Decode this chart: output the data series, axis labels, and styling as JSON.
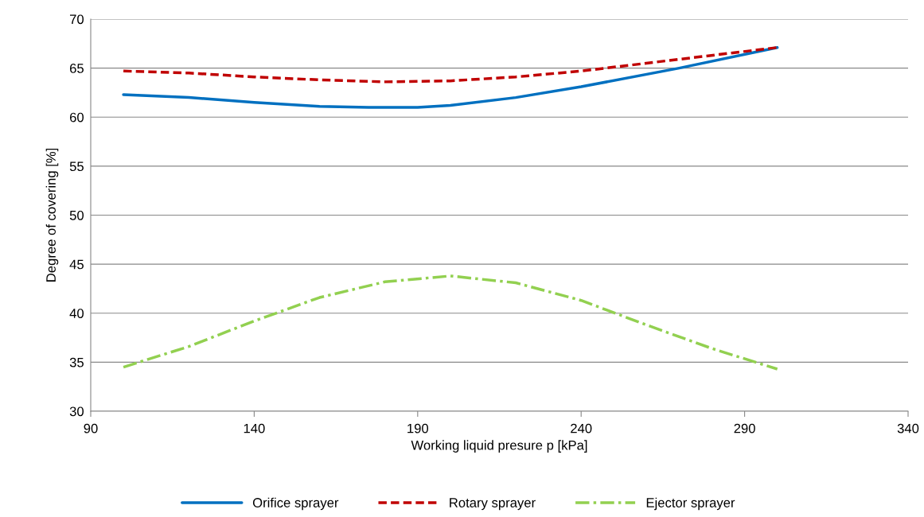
{
  "chart_data": {
    "type": "line",
    "xlabel": "Working liquid presure p [kPa]",
    "ylabel": "Degree of covering [%]",
    "xlim": [
      90,
      340
    ],
    "xticks": [
      90,
      140,
      190,
      240,
      290,
      340
    ],
    "ylim": [
      30,
      70
    ],
    "yticks": [
      30,
      35,
      40,
      45,
      50,
      55,
      60,
      65,
      70
    ],
    "grid": "y",
    "legend": "bottom",
    "marker": "none",
    "series": [
      {
        "name": "Orifice sprayer",
        "color": "#0070c0",
        "line_style": "solid",
        "x": [
          100,
          120,
          140,
          160,
          175,
          190,
          200,
          220,
          240,
          270,
          300
        ],
        "values": [
          62.3,
          62.0,
          61.5,
          61.1,
          61.0,
          61.0,
          61.2,
          62.0,
          63.1,
          65.0,
          67.1
        ]
      },
      {
        "name": "Rotary sprayer",
        "color": "#c00000",
        "line_style": "dashed",
        "x": [
          100,
          120,
          140,
          160,
          180,
          200,
          220,
          240,
          270,
          300
        ],
        "values": [
          64.7,
          64.5,
          64.1,
          63.8,
          63.6,
          63.7,
          64.1,
          64.7,
          65.9,
          67.1
        ]
      },
      {
        "name": "Ejector sprayer",
        "color": "#92d050",
        "line_style": "dashdot",
        "x": [
          100,
          120,
          140,
          160,
          180,
          200,
          220,
          240,
          260,
          280,
          300
        ],
        "values": [
          34.5,
          36.6,
          39.2,
          41.6,
          43.2,
          43.8,
          43.1,
          41.3,
          38.8,
          36.4,
          34.3
        ]
      }
    ]
  }
}
